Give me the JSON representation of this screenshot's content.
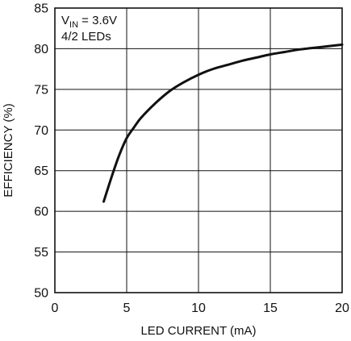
{
  "chart_data": {
    "type": "line",
    "title": "",
    "xlabel": "LED CURRENT (mA)",
    "ylabel": "EFFICIENCY (%)",
    "xlim": [
      0,
      20
    ],
    "ylim": [
      50,
      85
    ],
    "x_ticks": [
      0,
      5,
      10,
      15,
      20
    ],
    "y_ticks": [
      50,
      55,
      60,
      65,
      70,
      75,
      80,
      85
    ],
    "grid": true,
    "legend": "none",
    "annotation": {
      "symbol": "V",
      "subscript": "IN",
      "value_text": " = 3.6V",
      "line2": "4/2 LEDs"
    },
    "series": [
      {
        "color": "#111111",
        "x": [
          3.4,
          4.0,
          4.5,
          5.0,
          5.5,
          6.0,
          7.0,
          8.0,
          9.0,
          10.0,
          11.0,
          12.0,
          13.0,
          14.0,
          15.0,
          16.0,
          17.0,
          18.0,
          19.0,
          20.0
        ],
        "y": [
          61.2,
          64.5,
          67.0,
          69.0,
          70.3,
          71.5,
          73.3,
          74.8,
          75.9,
          76.8,
          77.5,
          78.0,
          78.5,
          78.9,
          79.3,
          79.6,
          79.9,
          80.1,
          80.3,
          80.5
        ]
      }
    ]
  }
}
